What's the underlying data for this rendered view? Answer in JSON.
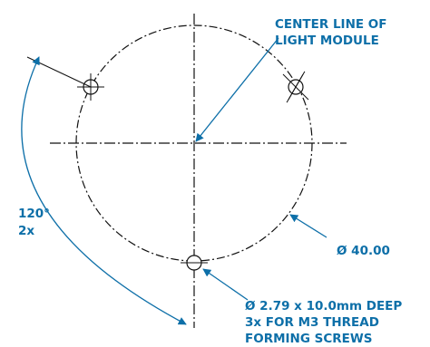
{
  "labels": {
    "center_line_1": "CENTER LINE OF",
    "center_line_2": "LIGHT MODULE",
    "angle_value": "120°",
    "angle_count": "2x",
    "diameter": "Ø 40.00",
    "hole_spec_1": "Ø 2.79 x 10.0mm DEEP",
    "hole_spec_2": "3x FOR M3 THREAD",
    "hole_spec_3": "FORMING SCREWS"
  },
  "colors": {
    "callout": "#0d6fa8",
    "geometry": "#111111"
  }
}
